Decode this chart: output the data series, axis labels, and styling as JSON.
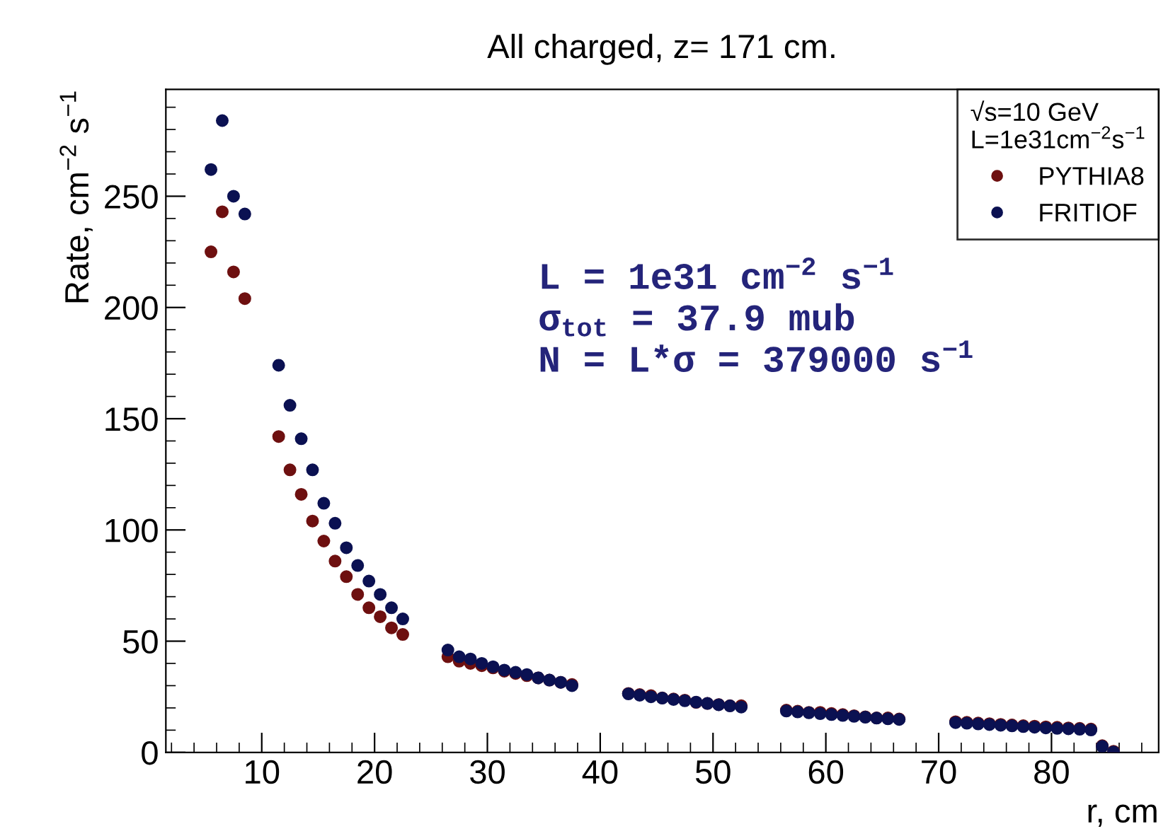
{
  "chart_data": {
    "type": "scatter",
    "title": "All charged, z= 171 cm.",
    "xlabel": "r, cm",
    "ylabel": "Rate, cm$^{−2}$ s$^{−1}$",
    "legend_title": "√s=10 GeV\nL=1e31cm$^{−2}$s$^{−1}$",
    "annotations": [
      "L = 1e31 cm$^{−2}$ s$^{−1}$\nσ$_{tot}$ = 37.9 mub\nN = L*σ = 379000 s$^{−1}$"
    ],
    "x": [
      5.5,
      6.5,
      7.5,
      8.5,
      11.5,
      12.5,
      13.5,
      14.5,
      15.5,
      16.5,
      17.5,
      18.5,
      19.5,
      20.5,
      21.5,
      22.5,
      26.5,
      27.5,
      28.5,
      29.5,
      30.5,
      31.5,
      32.5,
      33.5,
      34.5,
      35.5,
      36.5,
      37.5,
      42.5,
      43.5,
      44.5,
      45.5,
      46.5,
      47.5,
      48.5,
      49.5,
      50.5,
      51.5,
      52.5,
      56.5,
      57.5,
      58.5,
      59.5,
      60.5,
      61.5,
      62.5,
      63.5,
      64.5,
      65.5,
      66.5,
      71.5,
      72.5,
      73.5,
      74.5,
      75.5,
      76.5,
      77.5,
      78.5,
      79.5,
      80.5,
      81.5,
      82.5,
      83.5,
      84.5,
      85.5
    ],
    "series": [
      {
        "name": "PYTHIA8",
        "color": "#6e1010",
        "values": [
          225,
          243,
          216,
          204,
          142,
          127,
          116,
          104,
          95,
          86,
          79,
          71,
          65,
          61,
          56,
          53,
          43,
          41,
          40,
          39,
          38,
          36.5,
          35.5,
          34.5,
          33.5,
          32.5,
          31.5,
          30.5,
          26.5,
          26,
          25.5,
          24.5,
          24,
          23.5,
          22.5,
          22,
          21.5,
          21,
          21,
          19,
          18.5,
          18,
          18,
          17.5,
          17,
          16.5,
          16,
          15.5,
          15.5,
          15,
          13.8,
          13.5,
          13.2,
          12.9,
          12.6,
          12.3,
          12,
          11.8,
          11.5,
          11.3,
          11,
          10.8,
          10.5,
          3,
          0.5
        ]
      },
      {
        "name": "FRITIOF",
        "color": "#0b1152",
        "values": [
          262,
          284,
          250,
          242,
          174,
          156,
          141,
          127,
          112,
          103,
          92,
          84,
          77,
          71,
          65,
          60,
          46,
          43,
          42,
          40,
          38.5,
          37,
          36,
          35,
          33.5,
          32.5,
          31.5,
          30,
          26.3,
          25.7,
          25,
          24.4,
          23.8,
          23.2,
          22.6,
          22,
          21.4,
          20.9,
          20.4,
          18.6,
          18.2,
          17.8,
          17.4,
          17,
          16.6,
          16.2,
          15.8,
          15.4,
          15.1,
          14.8,
          13.4,
          13.1,
          12.8,
          12.5,
          12.2,
          11.9,
          11.6,
          11.3,
          11,
          10.8,
          10.6,
          10.4,
          10.1,
          2.7,
          0.2
        ]
      }
    ],
    "xlim": [
      1.5,
      89.5
    ],
    "ylim": [
      0,
      298
    ],
    "xticks": [
      10,
      20,
      30,
      40,
      50,
      60,
      70,
      80
    ],
    "yticks": [
      0,
      50,
      100,
      150,
      200,
      250
    ],
    "marker": "circle",
    "legend": "top right",
    "grid": false
  }
}
